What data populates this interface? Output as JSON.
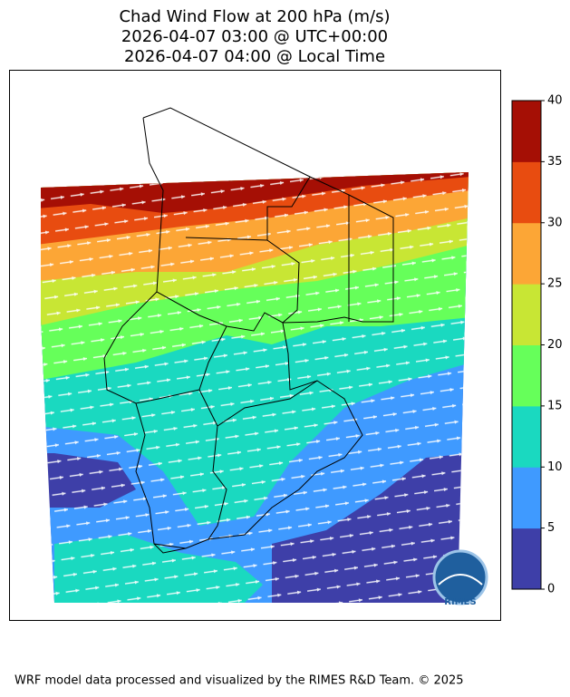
{
  "title": [
    "Chad Wind Flow at 200 hPa (m/s)",
    "2026-04-07 03:00 @ UTC+00:00",
    "2026-04-07 04:00 @ Local Time"
  ],
  "colorbar": {
    "lim": [
      0,
      40
    ],
    "ticks": [
      0,
      5,
      10,
      15,
      20,
      25,
      30,
      35,
      40
    ],
    "colors": [
      "#3e3fa8",
      "#3f9aff",
      "#1ad9c0",
      "#66ff5a",
      "#c8e634",
      "#fca636",
      "#e84c10",
      "#a50f05"
    ]
  },
  "logo": "RIMES",
  "footer": "WRF model data processed and visualized by the RIMES R&D Team. © 2025"
}
